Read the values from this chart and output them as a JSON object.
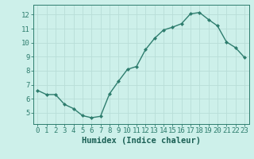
{
  "x": [
    0,
    1,
    2,
    3,
    4,
    5,
    6,
    7,
    8,
    9,
    10,
    11,
    12,
    13,
    14,
    15,
    16,
    17,
    18,
    19,
    20,
    21,
    22,
    23
  ],
  "y": [
    6.6,
    6.3,
    6.3,
    5.6,
    5.3,
    4.8,
    4.65,
    4.75,
    6.35,
    7.25,
    8.1,
    8.3,
    9.5,
    10.3,
    10.9,
    11.1,
    11.35,
    12.05,
    12.15,
    11.65,
    11.2,
    10.05,
    9.65,
    8.95
  ],
  "xlabel": "Humidex (Indice chaleur)",
  "ylabel": "",
  "ylim": [
    4.2,
    12.7
  ],
  "xlim": [
    -0.5,
    23.5
  ],
  "yticks": [
    5,
    6,
    7,
    8,
    9,
    10,
    11,
    12
  ],
  "xticks": [
    0,
    1,
    2,
    3,
    4,
    5,
    6,
    7,
    8,
    9,
    10,
    11,
    12,
    13,
    14,
    15,
    16,
    17,
    18,
    19,
    20,
    21,
    22,
    23
  ],
  "line_color": "#2e7d6e",
  "marker": "D",
  "marker_size": 2.0,
  "bg_color": "#cdf0ea",
  "grid_color": "#b8ddd8",
  "tick_color": "#2e7d6e",
  "label_color": "#1a5f54",
  "line_width": 1.0,
  "xlabel_fontsize": 7.5,
  "tick_fontsize": 6.5
}
